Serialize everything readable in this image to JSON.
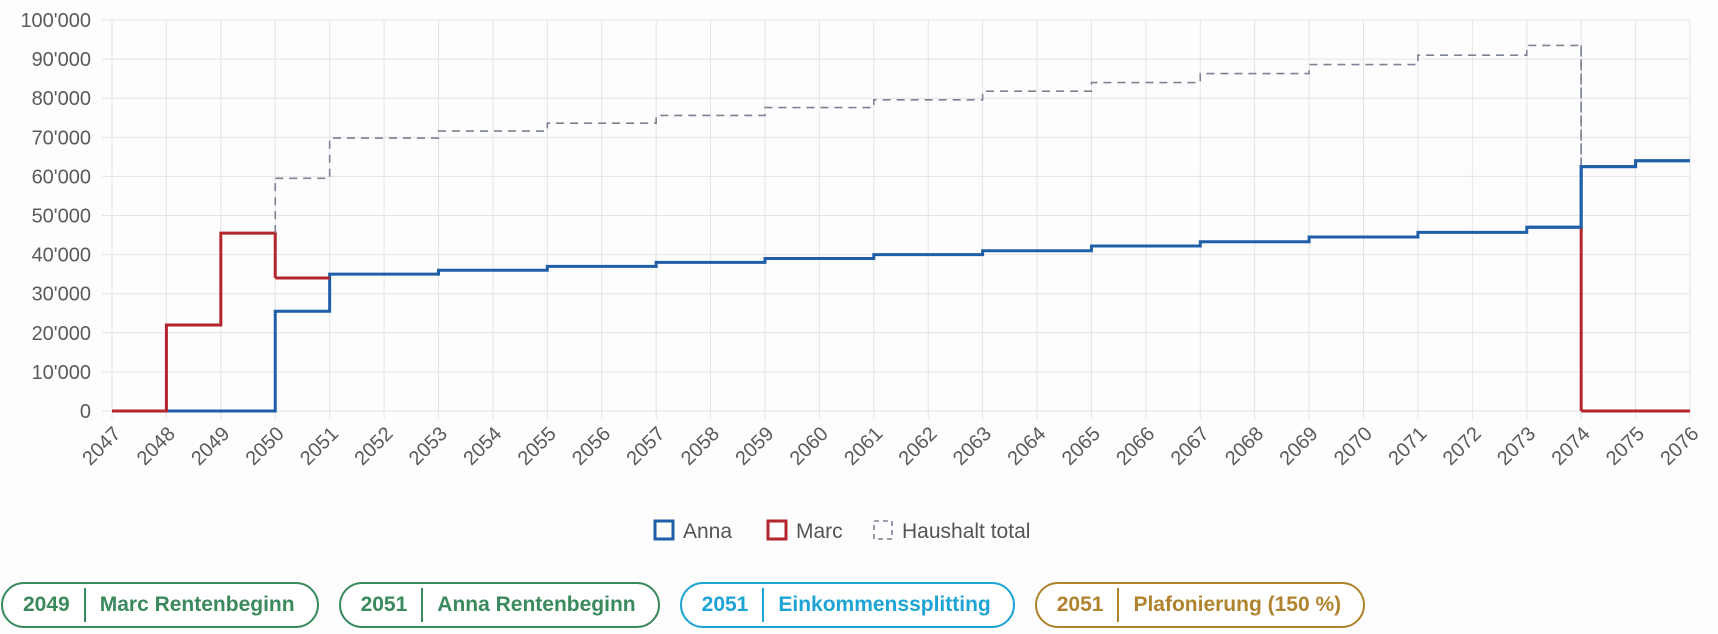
{
  "chart_data": {
    "type": "line",
    "step": true,
    "x": [
      2047,
      2048,
      2049,
      2050,
      2051,
      2052,
      2053,
      2054,
      2055,
      2056,
      2057,
      2058,
      2059,
      2060,
      2061,
      2062,
      2063,
      2064,
      2065,
      2066,
      2067,
      2068,
      2069,
      2070,
      2071,
      2072,
      2073,
      2074,
      2075,
      2076
    ],
    "x_tick_labels": [
      "2047",
      "2048",
      "2049",
      "2050",
      "2051",
      "2052",
      "2053",
      "2054",
      "2055",
      "2056",
      "2057",
      "2058",
      "2059",
      "2060",
      "2061",
      "2062",
      "2063",
      "2064",
      "2065",
      "2066",
      "2067",
      "2068",
      "2069",
      "2070",
      "2071",
      "2072",
      "2073",
      "2074",
      "2075",
      "2076"
    ],
    "ylim": [
      0,
      100000
    ],
    "y_ticks": [
      0,
      10000,
      20000,
      30000,
      40000,
      50000,
      60000,
      70000,
      80000,
      90000,
      100000
    ],
    "y_tick_labels": [
      "0",
      "10'000",
      "20'000",
      "30'000",
      "40'000",
      "50'000",
      "60'000",
      "70'000",
      "80'000",
      "90'000",
      "100'000"
    ],
    "grid": true,
    "legend_position": "bottom",
    "series": [
      {
        "name": "Anna",
        "color": "#1f5fa8",
        "style": "solid",
        "values": [
          0,
          0,
          0,
          25500,
          35000,
          35000,
          36000,
          36000,
          37000,
          37000,
          38000,
          38000,
          39000,
          39000,
          40000,
          40000,
          41000,
          41000,
          42200,
          42200,
          43300,
          43300,
          44500,
          44500,
          45700,
          45700,
          47000,
          62500,
          64000,
          64000
        ]
      },
      {
        "name": "Marc",
        "color": "#b3262e",
        "style": "solid",
        "values": [
          0,
          22000,
          45500,
          34000,
          null,
          null,
          null,
          null,
          null,
          null,
          null,
          null,
          null,
          null,
          null,
          null,
          null,
          null,
          null,
          null,
          null,
          null,
          null,
          null,
          null,
          null,
          null,
          0,
          0,
          0
        ]
      },
      {
        "name": "Haushalt total",
        "color": "#7a8294",
        "style": "dashed",
        "values": [
          null,
          null,
          null,
          59500,
          69800,
          69800,
          71600,
          71600,
          73600,
          73600,
          75600,
          75600,
          77600,
          77600,
          79600,
          79600,
          81800,
          81800,
          84000,
          84000,
          86300,
          86300,
          88600,
          88600,
          91000,
          91000,
          93500,
          62500,
          64000,
          64000
        ]
      }
    ]
  },
  "milestones": [
    {
      "year": "2049",
      "label": "Marc Rentenbeginn",
      "color": "#3a8a5e"
    },
    {
      "year": "2051",
      "label": "Anna Rentenbeginn",
      "color": "#3a8a5e"
    },
    {
      "year": "2051",
      "label": "Einkommenssplitting",
      "color": "#1ea4d4"
    },
    {
      "year": "2051",
      "label": "Plafonierung (150 %)",
      "color": "#b0832f"
    }
  ]
}
